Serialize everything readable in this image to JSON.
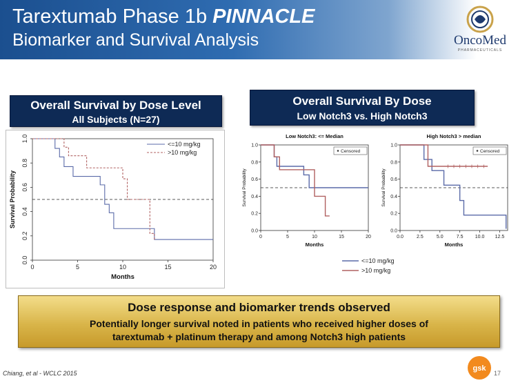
{
  "header": {
    "title_part1": "Tarextumab Phase 1b ",
    "title_part2": "PINNACLE",
    "subtitle": "Biomarker and Survival Analysis"
  },
  "logo": {
    "name": "OncoMed",
    "sub": "PHARMACEUTICALS"
  },
  "left_box": {
    "line1": "Overall Survival by Dose Level",
    "line2": "All Subjects (N=27)"
  },
  "right_box": {
    "line1": "Overall Survival By Dose",
    "line2": "Low Notch3 vs. High Notch3"
  },
  "bottom": {
    "heading": "Dose response and biomarker trends observed",
    "line1": "Potentially longer survival noted in patients who received higher doses of",
    "line2": "tarextumab + platinum therapy and among Notch3 high patients"
  },
  "footer": {
    "citation": "Chiang, et al - WCLC 2015",
    "page": "17"
  },
  "colors": {
    "low": "#5a6aa8",
    "high": "#b06060"
  },
  "chart_data": [
    {
      "type": "line",
      "title": "",
      "xlabel": "Months",
      "ylabel": "Survival Probability",
      "xlim": [
        0,
        20
      ],
      "ylim": [
        0,
        1
      ],
      "xticks": [
        "0",
        "5",
        "10",
        "15",
        "20"
      ],
      "yticks": [
        "0.0",
        "0.2",
        "0.4",
        "0.6",
        "0.8",
        "1.0"
      ],
      "reference_line": 0.5,
      "legend": [
        "<=10 mg/kg",
        ">10 mg/kg"
      ],
      "series": [
        {
          "name": "<=10 mg/kg",
          "color": "#5a6aa8",
          "dash": false,
          "x": [
            0,
            2.5,
            3.0,
            3.5,
            4.5,
            7.5,
            8.0,
            8.5,
            9.0,
            13.5,
            20
          ],
          "y": [
            1.0,
            0.92,
            0.85,
            0.77,
            0.69,
            0.62,
            0.46,
            0.39,
            0.26,
            0.17,
            0.17
          ]
        },
        {
          "name": ">10 mg/kg",
          "color": "#b06060",
          "dash": true,
          "x": [
            0,
            3.5,
            4.0,
            6.0,
            10.0,
            10.5,
            13.0,
            13.5
          ],
          "y": [
            1.0,
            0.93,
            0.86,
            0.76,
            0.67,
            0.5,
            0.22,
            0.17
          ]
        }
      ]
    },
    {
      "type": "line",
      "title": "Low Notch3: <= Median",
      "xlabel": "Months",
      "ylabel": "Survival Probability",
      "xlim": [
        0,
        20
      ],
      "ylim": [
        0,
        1
      ],
      "xticks": [
        "0",
        "5",
        "10",
        "15",
        "20"
      ],
      "yticks": [
        "0.0",
        "0.2",
        "0.4",
        "0.6",
        "0.8",
        "1.0"
      ],
      "reference_line": 0.5,
      "legend": [
        "Censored"
      ],
      "series": [
        {
          "name": "<=10 mg/kg",
          "color": "#5a6aa8",
          "x": [
            0,
            2.5,
            3.0,
            5.0,
            8.0,
            9.0,
            20
          ],
          "y": [
            1.0,
            0.86,
            0.75,
            0.75,
            0.65,
            0.5,
            0.5
          ]
        },
        {
          "name": ">10 mg/kg",
          "color": "#b06060",
          "x": [
            0,
            2.5,
            3.5,
            8.0,
            10.0,
            12.0,
            12.8
          ],
          "y": [
            1.0,
            0.86,
            0.71,
            0.71,
            0.4,
            0.17,
            0.17
          ]
        }
      ]
    },
    {
      "type": "line",
      "title": "High Notch3 > median",
      "xlabel": "Months",
      "ylabel": "Survival Probability",
      "xlim": [
        0,
        13.5
      ],
      "ylim": [
        0,
        1
      ],
      "xticks": [
        "0.0",
        "2.5",
        "5.0",
        "7.5",
        "10.0",
        "12.5"
      ],
      "yticks": [
        "0.0",
        "0.2",
        "0.4",
        "0.6",
        "0.8",
        "1.0"
      ],
      "reference_line": 0.5,
      "legend": [
        "Censored"
      ],
      "series": [
        {
          "name": "<=10 mg/kg",
          "color": "#5a6aa8",
          "x": [
            0,
            3.0,
            4.0,
            5.5,
            7.5,
            8.0,
            13.0,
            13.3
          ],
          "y": [
            1.0,
            0.83,
            0.7,
            0.53,
            0.35,
            0.18,
            0.18,
            0.02
          ]
        },
        {
          "name": ">10 mg/kg",
          "color": "#b06060",
          "x": [
            0,
            3.5,
            11.0
          ],
          "y": [
            1.0,
            0.75,
            0.75
          ]
        }
      ]
    }
  ],
  "shared_legend": [
    "<=10 mg/kg",
    ">10 mg/kg"
  ]
}
